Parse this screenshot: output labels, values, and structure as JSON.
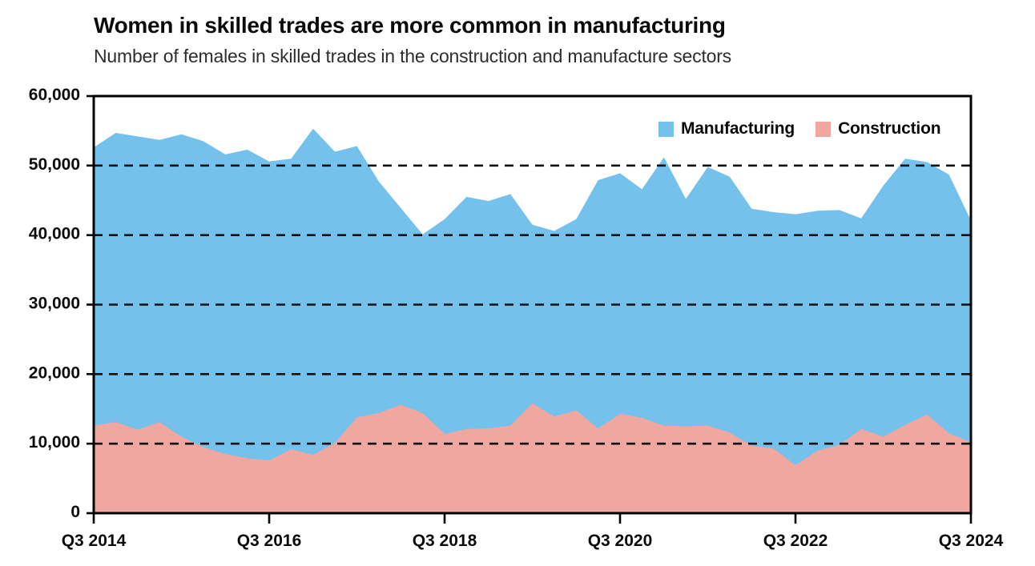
{
  "header": {
    "title": "Women in skilled trades are more common in manufacturing",
    "subtitle": "Number of females in skilled trades in the construction and manufacture sectors"
  },
  "legend": {
    "items": [
      {
        "label": "Manufacturing",
        "color": "#74C1EC"
      },
      {
        "label": "Construction",
        "color": "#F0A7A0"
      }
    ],
    "position": "top-right-inside"
  },
  "chart_data": {
    "type": "area",
    "layout": "overlapping-areas-from-zero",
    "title": "Women in skilled trades are more common in manufacturing",
    "subtitle": "Number of females in skilled trades in the construction and manufacture sectors",
    "xlabel": "",
    "ylabel": "",
    "ylim": [
      0,
      60000
    ],
    "grid": "horizontal-dashed",
    "grid_color": "#111111",
    "background": "#ffffff",
    "categories": [
      "Q3 2014",
      "Q4 2014",
      "Q1 2015",
      "Q2 2015",
      "Q3 2015",
      "Q4 2015",
      "Q1 2016",
      "Q2 2016",
      "Q3 2016",
      "Q4 2016",
      "Q1 2017",
      "Q2 2017",
      "Q3 2017",
      "Q4 2017",
      "Q1 2018",
      "Q2 2018",
      "Q3 2018",
      "Q4 2018",
      "Q1 2019",
      "Q2 2019",
      "Q3 2019",
      "Q4 2019",
      "Q1 2020",
      "Q2 2020",
      "Q3 2020",
      "Q4 2020",
      "Q1 2021",
      "Q2 2021",
      "Q3 2021",
      "Q4 2021",
      "Q1 2022",
      "Q2 2022",
      "Q3 2022",
      "Q4 2022",
      "Q1 2023",
      "Q2 2023",
      "Q3 2023",
      "Q4 2023",
      "Q1 2024",
      "Q2 2024",
      "Q3 2024"
    ],
    "x_tick_indices": [
      0,
      8,
      16,
      24,
      32,
      40
    ],
    "x_tick_labels": [
      "Q3 2014",
      "Q3 2016",
      "Q3 2018",
      "Q3 2020",
      "Q3 2022",
      "Q3 2024"
    ],
    "y_ticks": [
      {
        "value": 0,
        "label": "0"
      },
      {
        "value": 10000,
        "label": "10,000"
      },
      {
        "value": 20000,
        "label": "20,000"
      },
      {
        "value": 30000,
        "label": "30,000"
      },
      {
        "value": 40000,
        "label": "40,000"
      },
      {
        "value": 50000,
        "label": "50,000"
      },
      {
        "value": 60000,
        "label": "60,000"
      }
    ],
    "series": [
      {
        "name": "Manufacturing",
        "color": "#74C1EC",
        "values": [
          52600,
          54700,
          54200,
          53700,
          54500,
          53500,
          51600,
          52300,
          50600,
          51000,
          55300,
          52000,
          52800,
          47700,
          43900,
          40100,
          42300,
          45500,
          44900,
          45900,
          41500,
          40600,
          42300,
          47900,
          48900,
          46600,
          51200,
          45200,
          49800,
          48400,
          43800,
          43300,
          43000,
          43500,
          43600,
          42400,
          47100,
          51000,
          50500,
          48700,
          42100
        ]
      },
      {
        "name": "Construction",
        "color": "#F0A7A0",
        "values": [
          12600,
          13100,
          12000,
          13100,
          11000,
          9500,
          8500,
          7900,
          7600,
          9200,
          8400,
          10100,
          13800,
          14400,
          15600,
          14400,
          11400,
          12100,
          12200,
          12600,
          15800,
          13900,
          14800,
          12200,
          14300,
          13700,
          12600,
          12500,
          12600,
          11600,
          9700,
          9300,
          6900,
          9000,
          9800,
          12100,
          11000,
          12700,
          14200,
          11500,
          10200
        ]
      }
    ]
  }
}
